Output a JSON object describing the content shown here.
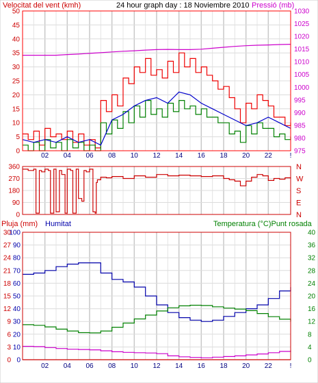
{
  "chart_data": [
    {
      "id": "wind",
      "type": "line",
      "title": "24 hour graph day : 18 Noviembre 2010",
      "left_label": "Velocitat del vent (kmh)",
      "right_label": "Pressió (mb)",
      "x_ticks": [
        "02",
        "04",
        "06",
        "08",
        "10",
        "12",
        "14",
        "16",
        "18",
        "20",
        "22",
        "!"
      ],
      "x_range": [
        0,
        24
      ],
      "ylim": [
        0,
        50
      ],
      "y_ticks": [
        "0",
        "5",
        "10",
        "15",
        "20",
        "25",
        "30",
        "35",
        "40",
        "45",
        "50"
      ],
      "y2lim": [
        970,
        1030
      ],
      "y2_ticks": [
        "975",
        "980",
        "985",
        "990",
        "995",
        "1000",
        "1005",
        "1010",
        "1015",
        "1020",
        "1025",
        "1030"
      ],
      "grid": true,
      "colors": {
        "gust": "#ee0000",
        "wind": "#008000",
        "avg": "#0000cc",
        "pressure": "#cc00cc",
        "frame": "#ff0000"
      },
      "series": [
        {
          "key": "gust",
          "color": "#ee0000",
          "axis": "left",
          "x": [
            0,
            0.5,
            1,
            1.5,
            2,
            2.5,
            3,
            3.5,
            4,
            4.5,
            5,
            5.5,
            6,
            6.5,
            7,
            7.5,
            8,
            8.5,
            9,
            9.5,
            10,
            10.5,
            11,
            11.5,
            12,
            12.5,
            13,
            13.5,
            14,
            14.5,
            15,
            15.5,
            16,
            16.5,
            17,
            17.5,
            18,
            18.5,
            19,
            19.5,
            20,
            20.5,
            21,
            21.5,
            22,
            22.5,
            23,
            23.5,
            24
          ],
          "values": [
            6,
            4,
            7,
            2,
            8,
            5,
            6,
            4,
            7,
            3,
            6,
            2,
            4,
            1,
            18,
            14,
            20,
            16,
            26,
            24,
            30,
            28,
            33,
            27,
            29,
            26,
            32,
            28,
            35,
            30,
            33,
            28,
            30,
            27,
            25,
            22,
            23,
            19,
            15,
            10,
            17,
            15,
            20,
            18,
            16,
            12,
            12,
            9,
            10
          ]
        },
        {
          "key": "wind",
          "color": "#008000",
          "axis": "left",
          "x": [
            0,
            0.5,
            1,
            1.5,
            2,
            2.5,
            3,
            3.5,
            4,
            4.5,
            5,
            5.5,
            6,
            6.5,
            7,
            7.5,
            8,
            8.5,
            9,
            9.5,
            10,
            10.5,
            11,
            11.5,
            12,
            12.5,
            13,
            13.5,
            14,
            14.5,
            15,
            15.5,
            16,
            16.5,
            17,
            17.5,
            18,
            18.5,
            19,
            19.5,
            20,
            20.5,
            21,
            21.5,
            22,
            22.5,
            23,
            23.5,
            24
          ],
          "values": [
            2,
            0,
            3,
            0,
            4,
            1,
            3,
            0,
            4,
            1,
            3,
            0,
            2,
            0,
            10,
            6,
            11,
            8,
            14,
            10,
            16,
            12,
            18,
            13,
            15,
            12,
            17,
            14,
            18,
            15,
            16,
            13,
            15,
            12,
            12,
            10,
            10,
            6,
            7,
            3,
            9,
            6,
            10,
            8,
            8,
            5,
            6,
            4,
            5
          ]
        },
        {
          "key": "avg",
          "color": "#0000cc",
          "axis": "left",
          "x": [
            0,
            1,
            2,
            3,
            4,
            5,
            6,
            7,
            8,
            9,
            10,
            11,
            12,
            13,
            14,
            15,
            16,
            17,
            18,
            19,
            20,
            21,
            22,
            23,
            24
          ],
          "values": [
            4,
            3,
            4,
            3,
            5,
            3,
            4,
            2,
            11,
            13,
            16,
            18,
            19,
            17,
            21,
            20,
            17,
            15,
            13,
            11,
            9,
            10,
            12,
            10,
            8
          ]
        },
        {
          "key": "pressure",
          "color": "#cc00cc",
          "axis": "right",
          "x": [
            0,
            1,
            2,
            3,
            4,
            5,
            6,
            7,
            8,
            9,
            10,
            11,
            12,
            13,
            14,
            15,
            16,
            17,
            18,
            19,
            20,
            21,
            22,
            23,
            24
          ],
          "values": [
            1011,
            1011,
            1011,
            1011,
            1011.3,
            1011.5,
            1011.8,
            1012.1,
            1012.4,
            1012.7,
            1012.9,
            1013.2,
            1013.4,
            1013.5,
            1013.4,
            1013.4,
            1013.6,
            1014,
            1014.4,
            1014.8,
            1015.1,
            1015.3,
            1015.4,
            1015.6,
            1015.7
          ]
        }
      ]
    },
    {
      "id": "direction",
      "type": "line",
      "x_range": [
        0,
        24
      ],
      "ylim": [
        0,
        360
      ],
      "y_ticks": [
        "0",
        "90",
        "180",
        "270",
        "360"
      ],
      "compass": [
        "N",
        "W",
        "S",
        "E",
        "N"
      ],
      "grid": true,
      "colors": {
        "direction": "#cc0000"
      },
      "series": [
        {
          "key": "direction",
          "color": "#cc0000",
          "x": [
            0,
            0.5,
            1,
            1.2,
            1.3,
            1.5,
            1.7,
            2,
            2.3,
            2.5,
            2.8,
            3,
            3.3,
            3.5,
            3.8,
            4,
            4.3,
            4.5,
            4.8,
            5,
            5.3,
            5.5,
            5.7,
            6,
            6.3,
            6.5,
            6.6,
            6.7,
            7,
            7.5,
            8,
            9,
            10,
            11,
            12,
            13,
            14,
            15,
            16,
            17,
            18,
            18.5,
            19,
            19.5,
            20,
            20.5,
            21,
            21.5,
            22,
            22.5,
            23,
            23.5,
            24
          ],
          "values": [
            340,
            330,
            340,
            10,
            10,
            330,
            320,
            340,
            330,
            10,
            340,
            20,
            330,
            300,
            10,
            340,
            330,
            10,
            340,
            120,
            100,
            330,
            320,
            340,
            20,
            10,
            240,
            260,
            280,
            275,
            285,
            270,
            290,
            280,
            300,
            290,
            295,
            290,
            285,
            290,
            270,
            260,
            250,
            215,
            250,
            280,
            300,
            290,
            255,
            270,
            265,
            275,
            270
          ]
        }
      ]
    },
    {
      "id": "rain-humidity-temperature",
      "type": "line",
      "left_label_rain": "Pluja (mm)",
      "left_label_humidity": "Humitat",
      "right_label": "Temperatura (°C)Punt rosada",
      "x_ticks": [
        "02",
        "04",
        "06",
        "08",
        "10",
        "12",
        "14",
        "16",
        "18",
        "20",
        "22",
        "!"
      ],
      "x_range": [
        0,
        24
      ],
      "rain_ticks": [
        "0",
        "3",
        "6",
        "9",
        "12",
        "15",
        "18",
        "21",
        "24",
        "27",
        "30"
      ],
      "humidity_ticks": [
        "0",
        "10",
        "20",
        "30",
        "40",
        "50",
        "60",
        "70",
        "80",
        "90",
        "100"
      ],
      "ylim": [
        0,
        100
      ],
      "y2lim": [
        0,
        40
      ],
      "y2_ticks": [
        "0",
        "4",
        "8",
        "12",
        "16",
        "20",
        "24",
        "28",
        "32",
        "36",
        "40"
      ],
      "grid": true,
      "colors": {
        "humidity": "#0000aa",
        "temperature": "#008000",
        "dewpoint": "#cc00cc",
        "rain": "#cc0000"
      },
      "series": [
        {
          "key": "humidity",
          "color": "#0000aa",
          "axis": "humidity",
          "x": [
            0,
            1,
            2,
            3,
            4,
            5,
            6,
            7,
            8,
            9,
            10,
            11,
            12,
            13,
            14,
            15,
            16,
            17,
            18,
            19,
            20,
            21,
            22,
            23,
            24
          ],
          "values": [
            67,
            68,
            70,
            73,
            75,
            76,
            76,
            68,
            63,
            61,
            57,
            50,
            43,
            37,
            33,
            31,
            30,
            31,
            34,
            37,
            40,
            43,
            48,
            54,
            57
          ]
        },
        {
          "key": "temperature",
          "color": "#008000",
          "axis": "temperature",
          "x": [
            0,
            1,
            2,
            3,
            4,
            5,
            6,
            7,
            8,
            9,
            10,
            11,
            12,
            13,
            14,
            15,
            16,
            17,
            18,
            19,
            20,
            21,
            22,
            23,
            24
          ],
          "values": [
            11,
            10.8,
            10.3,
            9.6,
            9,
            8.5,
            8.4,
            9,
            10.2,
            11.5,
            12.8,
            14,
            15.3,
            16.3,
            16.9,
            17.1,
            17,
            16.6,
            16.2,
            15.9,
            15.4,
            14.5,
            13.5,
            12.7,
            12
          ]
        },
        {
          "key": "dewpoint",
          "color": "#cc00cc",
          "axis": "temperature",
          "x": [
            0,
            1,
            2,
            3,
            4,
            5,
            6,
            7,
            8,
            9,
            10,
            11,
            12,
            13,
            14,
            15,
            16,
            17,
            18,
            19,
            20,
            21,
            22,
            23,
            24
          ],
          "values": [
            4.2,
            4.1,
            3.8,
            3.5,
            3.3,
            3.2,
            3.1,
            2.8,
            2.5,
            2.3,
            2.2,
            2.1,
            1.9,
            1.2,
            0.9,
            0.7,
            0.6,
            0.8,
            1,
            1.2,
            1.5,
            1.8,
            2.2,
            2.6,
            2.9
          ]
        },
        {
          "key": "rain",
          "color": "#cc0000",
          "axis": "rain",
          "x": [
            0,
            24
          ],
          "values": [
            0,
            0
          ]
        }
      ]
    }
  ]
}
